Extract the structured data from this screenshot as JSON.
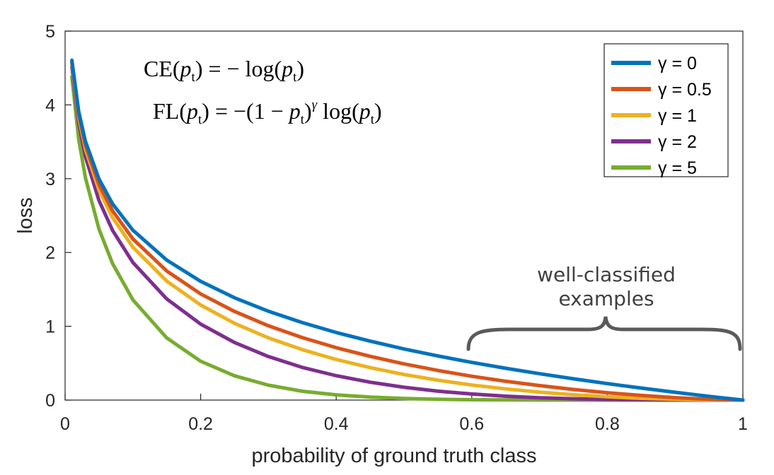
{
  "chart_data": {
    "type": "line",
    "xlabel": "probability of ground truth class",
    "ylabel": "loss",
    "xlim": [
      0,
      1
    ],
    "ylim": [
      0,
      5
    ],
    "x_ticks": [
      "0",
      "0.2",
      "0.4",
      "0.6",
      "0.8",
      "1"
    ],
    "y_ticks": [
      "0",
      "1",
      "2",
      "3",
      "4",
      "5"
    ],
    "grid": false,
    "legend_position": "top-right",
    "formulas": [
      {
        "lhs": "CE",
        "rhs": "= − log",
        "arg": "p",
        "sub": "t"
      },
      {
        "lhs": "FL",
        "rhs": "= −(1 − ",
        "arg": "p",
        "sub": "t",
        "power": "γ",
        "tail": " log"
      }
    ],
    "annotation": {
      "line1": "well-classified",
      "line2": "examples",
      "x_range": [
        0.6,
        1.0
      ]
    },
    "x": [
      0.01,
      0.02,
      0.03,
      0.05,
      0.07,
      0.1,
      0.15,
      0.2,
      0.25,
      0.3,
      0.35,
      0.4,
      0.45,
      0.5,
      0.55,
      0.6,
      0.65,
      0.7,
      0.75,
      0.8,
      0.85,
      0.9,
      0.95,
      1.0
    ],
    "series": [
      {
        "name": "γ = 0",
        "gamma": 0,
        "color": "#0072BD",
        "values": [
          4.605,
          3.912,
          3.507,
          2.996,
          2.659,
          2.303,
          1.897,
          1.609,
          1.386,
          1.204,
          1.05,
          0.916,
          0.799,
          0.693,
          0.598,
          0.511,
          0.431,
          0.357,
          0.288,
          0.223,
          0.163,
          0.105,
          0.051,
          0.0
        ]
      },
      {
        "name": "γ = 0.5",
        "gamma": 0.5,
        "color": "#D95319",
        "values": [
          4.582,
          3.873,
          3.454,
          2.92,
          2.565,
          2.184,
          1.749,
          1.439,
          1.201,
          1.007,
          0.847,
          0.71,
          0.593,
          0.49,
          0.401,
          0.323,
          0.255,
          0.196,
          0.144,
          0.1,
          0.063,
          0.033,
          0.011,
          0.0
        ]
      },
      {
        "name": "γ = 1",
        "gamma": 1,
        "color": "#EDB120",
        "values": [
          4.559,
          3.834,
          3.402,
          2.846,
          2.473,
          2.072,
          1.612,
          1.288,
          1.04,
          0.843,
          0.683,
          0.55,
          0.44,
          0.347,
          0.269,
          0.204,
          0.151,
          0.107,
          0.072,
          0.045,
          0.024,
          0.011,
          0.003,
          0.0
        ]
      },
      {
        "name": "γ = 2",
        "gamma": 2,
        "color": "#7E2F8E",
        "values": [
          4.513,
          3.757,
          3.3,
          2.704,
          2.3,
          1.865,
          1.371,
          1.03,
          0.78,
          0.59,
          0.443,
          0.33,
          0.242,
          0.173,
          0.121,
          0.082,
          0.053,
          0.032,
          0.018,
          0.009,
          0.004,
          0.001,
          0.0001,
          0.0
        ]
      },
      {
        "name": "γ = 5",
        "gamma": 5,
        "color": "#77AC30",
        "values": [
          4.379,
          3.537,
          3.014,
          2.318,
          1.85,
          1.359,
          0.842,
          0.527,
          0.329,
          0.202,
          0.12,
          0.071,
          0.04,
          0.022,
          0.011,
          0.005,
          0.002,
          0.001,
          0.0003,
          0.0001,
          0.0,
          0.0,
          0.0,
          0.0
        ]
      }
    ]
  }
}
